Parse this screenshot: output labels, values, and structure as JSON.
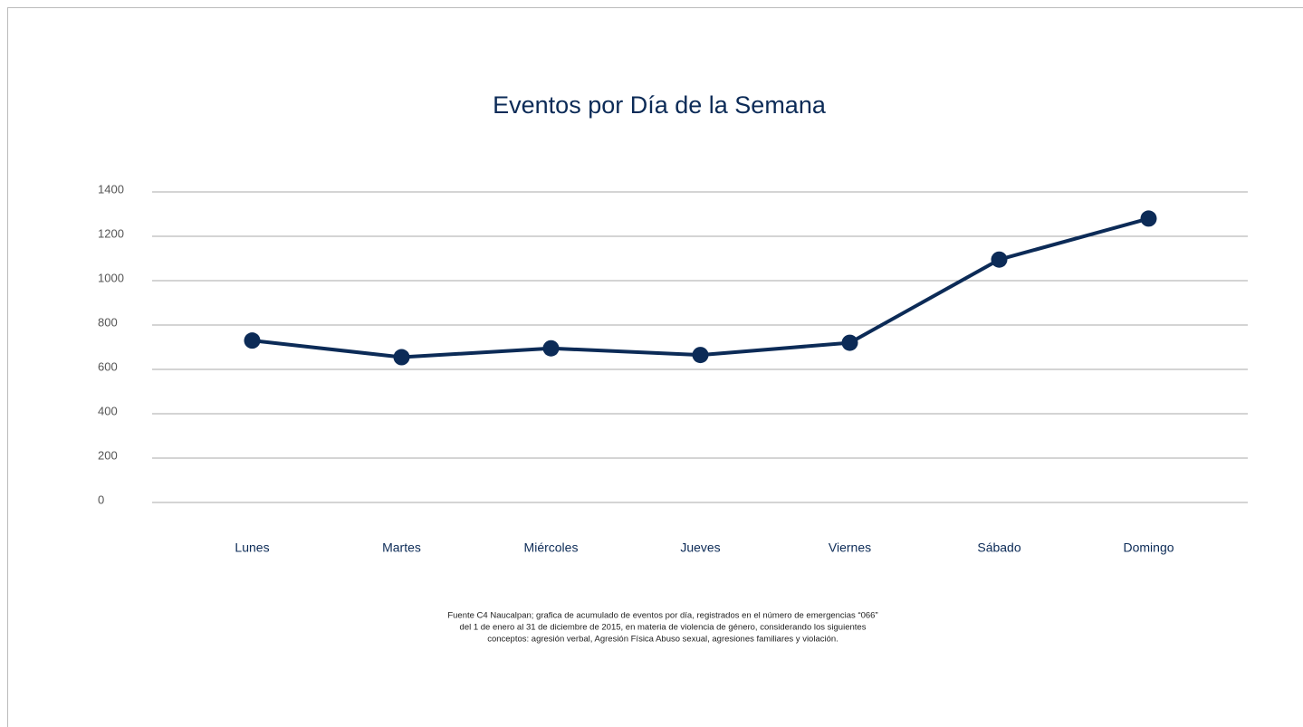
{
  "chart_data": {
    "type": "line",
    "title": "Eventos por Día de la Semana",
    "categories": [
      "Lunes",
      "Martes",
      "Miércoles",
      "Jueves",
      "Viernes",
      "Sábado",
      "Domingo"
    ],
    "series": [
      {
        "name": "Eventos",
        "color": "#0c2b57",
        "values": [
          730,
          655,
          695,
          665,
          720,
          1095,
          1280
        ]
      }
    ],
    "ylim": [
      0,
      1400
    ],
    "yticks": [
      0,
      200,
      400,
      600,
      800,
      1000,
      1200,
      1400
    ],
    "grid": true,
    "note": [
      "Fuente C4 Naucalpan; grafica de acumulado de eventos por día, registrados en el número de emergencias “066”",
      "del 1 de enero al 31 de diciembre de 2015, en materia de violencia de género, considerando los siguientes",
      "conceptos: agresión verbal, Agresión Física Abuso sexual, agresiones familiares y violación."
    ]
  }
}
